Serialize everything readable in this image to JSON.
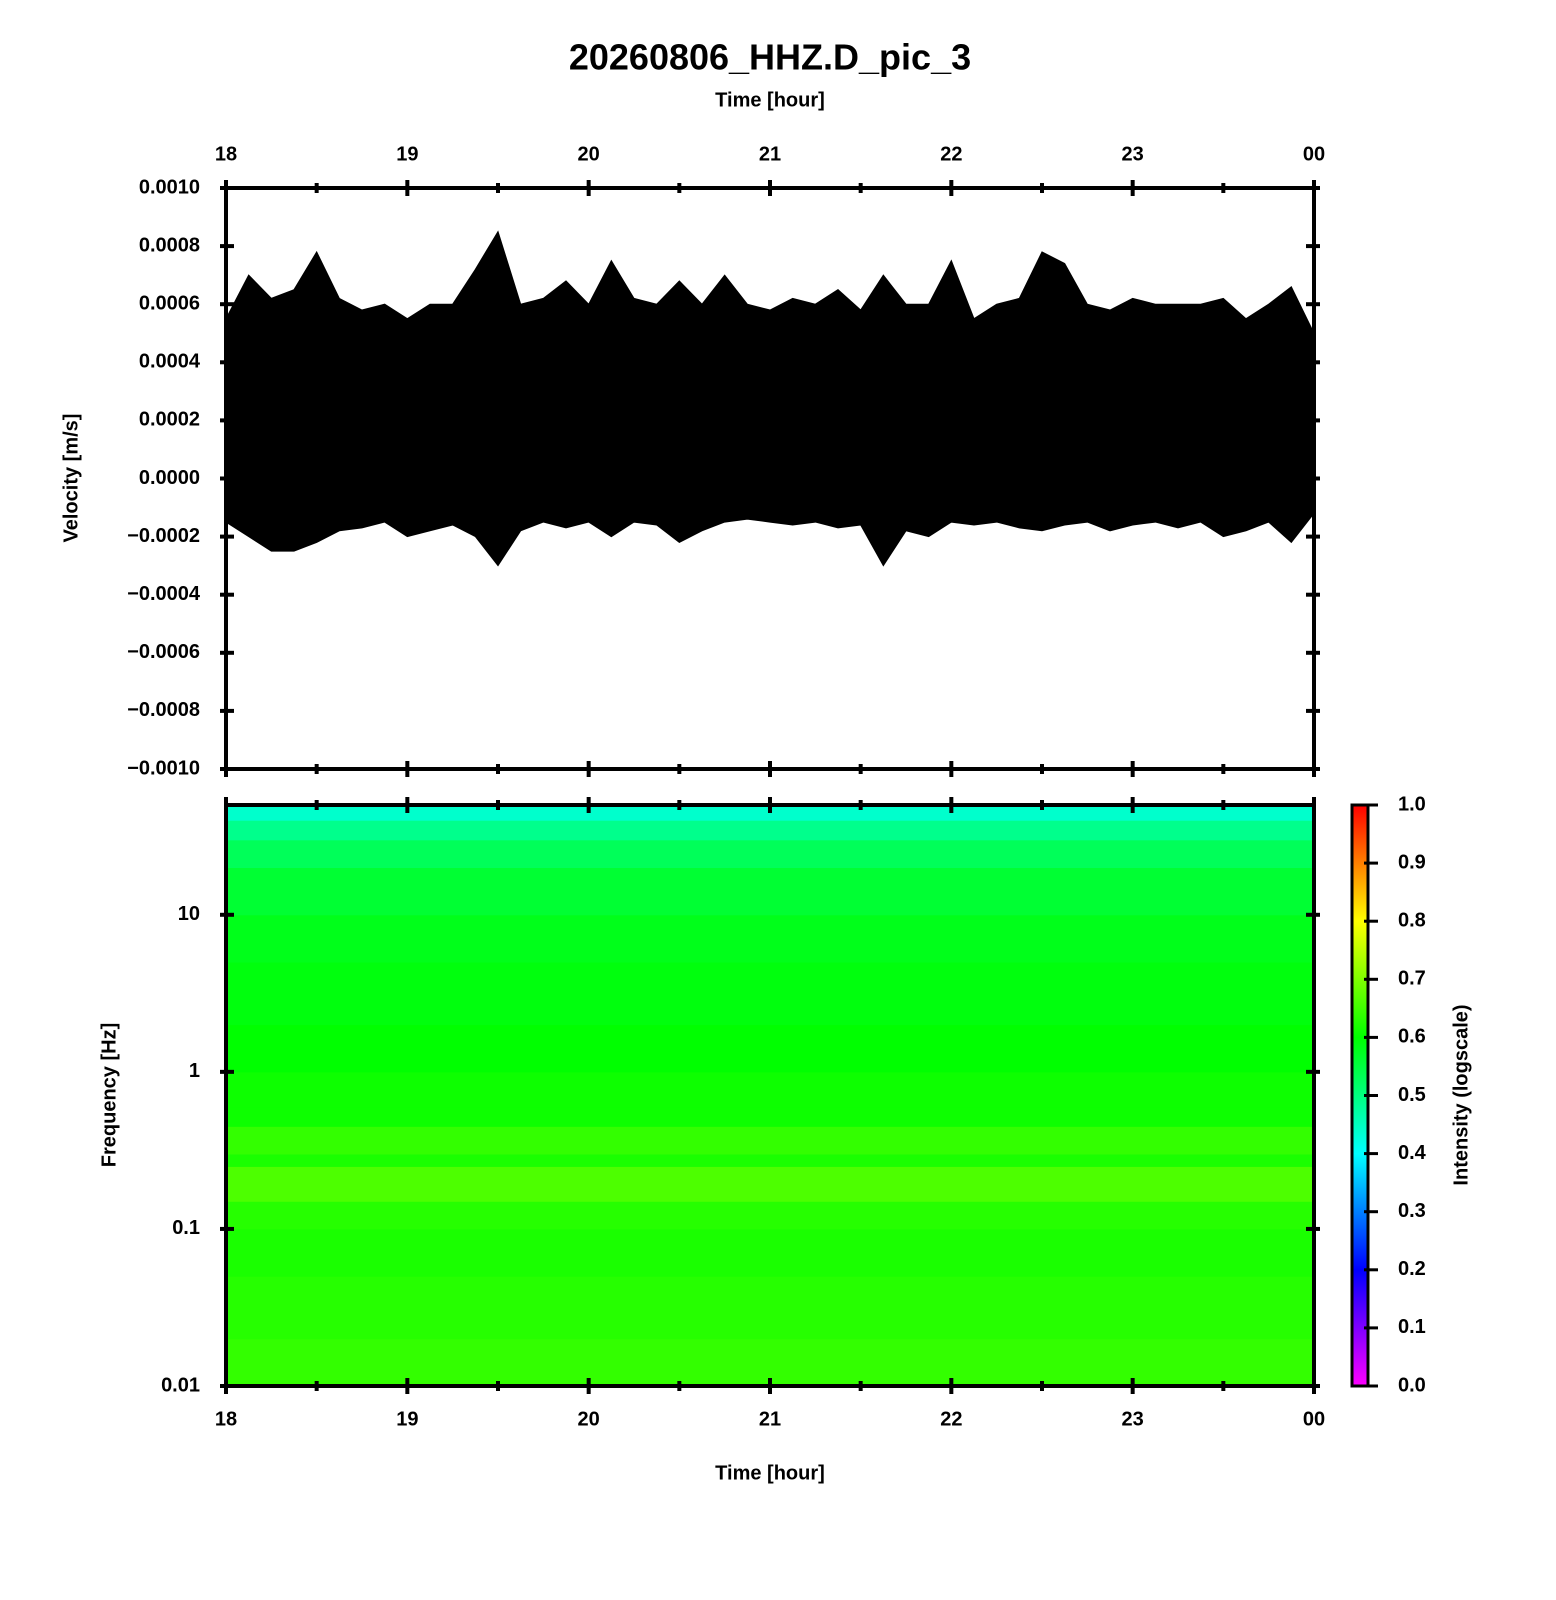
{
  "chart_data": [
    {
      "type": "area",
      "title": "20260806_HHZ.D_pic_3",
      "xlabel": "Time [hour]",
      "ylabel": "Velocity [m/s]",
      "color": "#000000",
      "x": [
        18,
        18.125,
        18.25,
        18.375,
        18.5,
        18.625,
        18.75,
        18.875,
        19,
        19.125,
        19.25,
        19.375,
        19.5,
        19.625,
        19.75,
        19.875,
        20,
        20.125,
        20.25,
        20.375,
        20.5,
        20.625,
        20.75,
        20.875,
        21,
        21.125,
        21.25,
        21.375,
        21.5,
        21.625,
        21.75,
        21.875,
        22,
        22.125,
        22.25,
        22.375,
        22.5,
        22.625,
        22.75,
        22.875,
        23,
        23.125,
        23.25,
        23.375,
        23.5,
        23.625,
        23.75,
        23.875,
        24
      ],
      "upper": [
        0.00055,
        0.0007,
        0.00062,
        0.00065,
        0.00078,
        0.00062,
        0.00058,
        0.0006,
        0.00055,
        0.0006,
        0.0006,
        0.00072,
        0.00085,
        0.0006,
        0.00062,
        0.00068,
        0.0006,
        0.00075,
        0.00062,
        0.0006,
        0.00068,
        0.0006,
        0.0007,
        0.0006,
        0.00058,
        0.00062,
        0.0006,
        0.00065,
        0.00058,
        0.0007,
        0.0006,
        0.0006,
        0.00075,
        0.00055,
        0.0006,
        0.00062,
        0.00078,
        0.00074,
        0.0006,
        0.00058,
        0.00062,
        0.0006,
        0.0006,
        0.0006,
        0.00062,
        0.00055,
        0.0006,
        0.00066,
        0.0005
      ],
      "lower": [
        -0.00015,
        -0.0002,
        -0.00025,
        -0.00025,
        -0.00022,
        -0.00018,
        -0.00017,
        -0.00015,
        -0.0002,
        -0.00018,
        -0.00016,
        -0.0002,
        -0.0003,
        -0.00018,
        -0.00015,
        -0.00017,
        -0.00015,
        -0.0002,
        -0.00015,
        -0.00016,
        -0.00022,
        -0.00018,
        -0.00015,
        -0.00014,
        -0.00015,
        -0.00016,
        -0.00015,
        -0.00017,
        -0.00016,
        -0.0003,
        -0.00018,
        -0.0002,
        -0.00015,
        -0.00016,
        -0.00015,
        -0.00017,
        -0.00018,
        -0.00016,
        -0.00015,
        -0.00018,
        -0.00016,
        -0.00015,
        -0.00017,
        -0.00015,
        -0.0002,
        -0.00018,
        -0.00015,
        -0.00022,
        -0.00012
      ],
      "xlim": [
        18,
        24
      ],
      "xticks": [
        18,
        19,
        20,
        21,
        22,
        23,
        {
          "value": 24,
          "label": "00"
        }
      ],
      "xminorticks": [
        18.5,
        19.5,
        20.5,
        21.5,
        22.5,
        23.5
      ],
      "ylim": [
        -0.001,
        0.001
      ],
      "yticks": [
        {
          "value": -0.001,
          "label": "−0.0010"
        },
        {
          "value": -0.0008,
          "label": "−0.0008"
        },
        {
          "value": -0.0006,
          "label": "−0.0006"
        },
        {
          "value": -0.0004,
          "label": "−0.0004"
        },
        {
          "value": -0.0002,
          "label": "−0.0002"
        },
        {
          "value": 0,
          "label": "0.0000"
        },
        {
          "value": 0.0002,
          "label": "0.0002"
        },
        {
          "value": 0.0004,
          "label": "0.0004"
        },
        {
          "value": 0.0006,
          "label": "0.0006"
        },
        {
          "value": 0.0008,
          "label": "0.0008"
        },
        {
          "value": 0.001,
          "label": "0.0010"
        }
      ]
    },
    {
      "type": "heatmap",
      "xlabel": "Time [hour]",
      "ylabel": "Frequency [Hz]",
      "colorbar_label": "Intensity (logscale)",
      "xlim": [
        18,
        24
      ],
      "xticks": [
        18,
        19,
        20,
        21,
        22,
        23,
        {
          "value": 24,
          "label": "00"
        }
      ],
      "xminorticks": [
        18.5,
        19.5,
        20.5,
        21.5,
        22.5,
        23.5
      ],
      "ylim": [
        0.01,
        50
      ],
      "yscale": "log",
      "yticks": [
        0.01,
        0.1,
        1,
        10
      ],
      "frequency_bins": [
        0.01,
        0.02,
        0.05,
        0.1,
        0.15,
        0.25,
        0.3,
        0.45,
        0.6,
        1,
        2,
        5,
        10,
        20,
        30,
        40,
        50
      ],
      "intensity": [
        0.64,
        0.63,
        0.62,
        0.63,
        0.66,
        0.62,
        0.64,
        0.61,
        0.61,
        0.6,
        0.59,
        0.58,
        0.56,
        0.53,
        0.49,
        0.44
      ],
      "clim": [
        0,
        1
      ],
      "cticks": [
        {
          "value": 0,
          "label": "0.0"
        },
        {
          "value": 0.1,
          "label": "0.1"
        },
        {
          "value": 0.2,
          "label": "0.2"
        },
        {
          "value": 0.3,
          "label": "0.3"
        },
        {
          "value": 0.4,
          "label": "0.4"
        },
        {
          "value": 0.5,
          "label": "0.5"
        },
        {
          "value": 0.6,
          "label": "0.6"
        },
        {
          "value": 0.7,
          "label": "0.7"
        },
        {
          "value": 0.8,
          "label": "0.8"
        },
        {
          "value": 0.9,
          "label": "0.9"
        },
        {
          "value": 1,
          "label": "1.0"
        }
      ],
      "colormap": [
        "#ff00ff",
        "#0000ff",
        "#00ffff",
        "#00ff00",
        "#ffff00",
        "#ff0000"
      ]
    }
  ]
}
